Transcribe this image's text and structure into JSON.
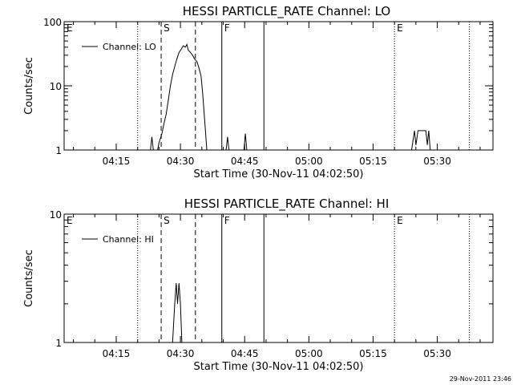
{
  "chart_data": [
    {
      "type": "line",
      "title": "HESSI PARTICLE_RATE Channel: LO",
      "xlabel": "Start Time (30-Nov-11 04:02:50)",
      "ylabel": "Counts/sec",
      "y_scale": "log",
      "ylim": [
        1,
        100
      ],
      "yticks": [
        {
          "value": 1,
          "label": "1"
        },
        {
          "value": 10,
          "label": "10"
        },
        {
          "value": 100,
          "label": "100"
        }
      ],
      "xlim": [
        "04:02:50",
        "05:43:00"
      ],
      "xticks": [
        "04:15",
        "04:30",
        "04:45",
        "05:00",
        "05:15",
        "05:30"
      ],
      "legend": {
        "label": "Channel: LO",
        "placement": "top-left"
      },
      "markers": [
        {
          "time": "04:02:50",
          "letter": "E",
          "style": "dotted"
        },
        {
          "time": "04:20:00",
          "letter": "",
          "style": "dotted"
        },
        {
          "time": "04:25:30",
          "letter": "S",
          "style": "dashed"
        },
        {
          "time": "04:33:30",
          "letter": "",
          "style": "dashed"
        },
        {
          "time": "04:39:40",
          "letter": "F",
          "style": "solid"
        },
        {
          "time": "04:49:30",
          "letter": "",
          "style": "solid"
        },
        {
          "time": "05:20:00",
          "letter": "E",
          "style": "dotted"
        },
        {
          "time": "05:37:30",
          "letter": "",
          "style": "dotted"
        }
      ],
      "series": [
        {
          "segments": [
            [
              [
                "04:23:00",
                1
              ],
              [
                "04:23:20",
                1.6
              ],
              [
                "04:23:40",
                1
              ]
            ],
            [
              [
                "04:24:40",
                1
              ],
              [
                "04:25:00",
                1.3
              ],
              [
                "04:25:40",
                1.8
              ],
              [
                "04:26:10",
                2.6
              ],
              [
                "04:26:40",
                3.6
              ],
              [
                "04:27:10",
                6
              ],
              [
                "04:27:40",
                10
              ],
              [
                "04:28:10",
                15
              ],
              [
                "04:28:40",
                20
              ],
              [
                "04:29:10",
                26
              ],
              [
                "04:29:40",
                33
              ],
              [
                "04:30:10",
                37
              ],
              [
                "04:30:40",
                42
              ],
              [
                "04:31:10",
                40
              ],
              [
                "04:31:30",
                44
              ],
              [
                "04:31:50",
                36
              ],
              [
                "04:32:20",
                33
              ],
              [
                "04:32:50",
                30
              ],
              [
                "04:33:20",
                26
              ],
              [
                "04:33:50",
                24
              ],
              [
                "04:34:20",
                19
              ],
              [
                "04:34:50",
                14
              ],
              [
                "04:35:10",
                8
              ],
              [
                "04:35:30",
                4
              ],
              [
                "04:35:50",
                2
              ],
              [
                "04:36:10",
                1
              ]
            ],
            [
              [
                "04:40:40",
                1
              ],
              [
                "04:41:00",
                1.6
              ],
              [
                "04:41:20",
                1
              ]
            ],
            [
              [
                "04:44:50",
                1
              ],
              [
                "04:45:10",
                1.8
              ],
              [
                "04:45:30",
                1
              ]
            ],
            [
              [
                "05:24:00",
                1
              ],
              [
                "05:24:40",
                2
              ],
              [
                "05:25:00",
                1.2
              ],
              [
                "05:25:30",
                2
              ],
              [
                "05:27:20",
                2
              ],
              [
                "05:27:40",
                1.2
              ],
              [
                "05:28:00",
                2
              ],
              [
                "05:28:20",
                1
              ]
            ]
          ]
        }
      ]
    },
    {
      "type": "line",
      "title": "HESSI PARTICLE_RATE Channel: HI",
      "xlabel": "Start Time (30-Nov-11 04:02:50)",
      "ylabel": "Counts/sec",
      "y_scale": "log",
      "ylim": [
        1,
        10
      ],
      "yticks": [
        {
          "value": 1,
          "label": "1"
        },
        {
          "value": 10,
          "label": "10"
        }
      ],
      "xlim": [
        "04:02:50",
        "05:43:00"
      ],
      "xticks": [
        "04:15",
        "04:30",
        "04:45",
        "05:00",
        "05:15",
        "05:30"
      ],
      "legend": {
        "label": "Channel: HI",
        "placement": "top-left"
      },
      "markers": [
        {
          "time": "04:02:50",
          "letter": "E",
          "style": "dotted"
        },
        {
          "time": "04:20:00",
          "letter": "",
          "style": "dotted"
        },
        {
          "time": "04:25:30",
          "letter": "S",
          "style": "dashed"
        },
        {
          "time": "04:33:30",
          "letter": "",
          "style": "dashed"
        },
        {
          "time": "04:39:40",
          "letter": "F",
          "style": "solid"
        },
        {
          "time": "04:49:30",
          "letter": "",
          "style": "solid"
        },
        {
          "time": "05:20:00",
          "letter": "E",
          "style": "dotted"
        },
        {
          "time": "05:37:30",
          "letter": "",
          "style": "dotted"
        }
      ],
      "series": [
        {
          "segments": [
            [
              [
                "04:28:10",
                1
              ],
              [
                "04:28:40",
                2
              ],
              [
                "04:29:00",
                2.9
              ],
              [
                "04:29:20",
                2
              ],
              [
                "04:29:40",
                2.9
              ],
              [
                "04:30:00",
                2
              ],
              [
                "04:30:20",
                1
              ]
            ]
          ]
        }
      ]
    }
  ],
  "timestamp": "29-Nov-2011 23:46"
}
